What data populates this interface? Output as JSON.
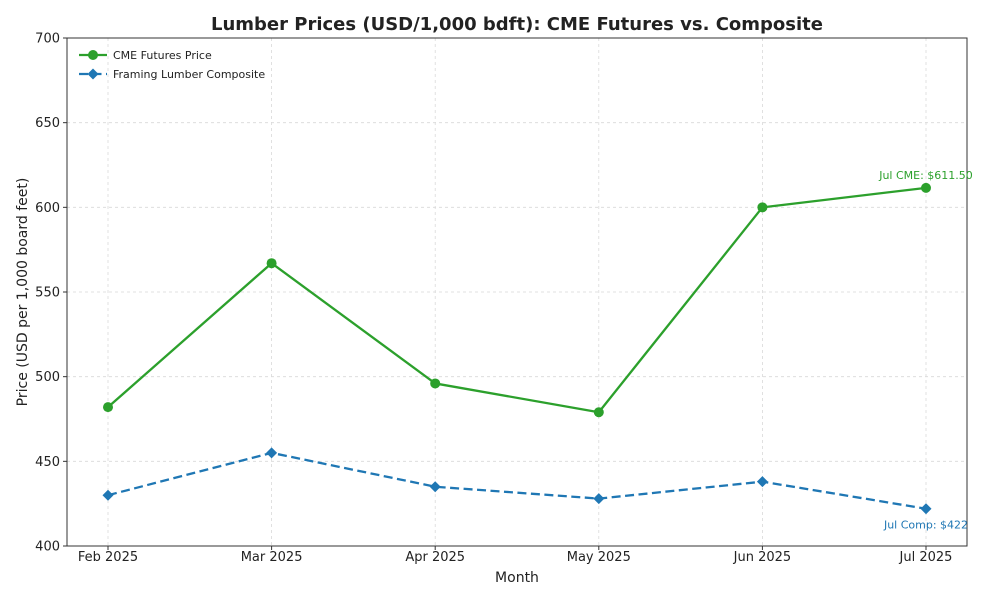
{
  "chart_data": {
    "type": "line",
    "title": "Lumber Prices (USD/1,000 bdft): CME Futures vs. Composite",
    "xlabel": "Month",
    "ylabel": "Price (USD per 1,000 board feet)",
    "categories": [
      "Feb 2025",
      "Mar 2025",
      "Apr 2025",
      "May 2025",
      "Jun 2025",
      "Jul 2025"
    ],
    "ylim": [
      400,
      700
    ],
    "yticks": [
      400,
      450,
      500,
      550,
      600,
      650,
      700
    ],
    "grid": true,
    "legend_position": "top-left",
    "series": [
      {
        "name": "CME Futures Price",
        "values": [
          482,
          567,
          496,
          479,
          600,
          611.5
        ],
        "color": "#2ca02c",
        "marker": "circle",
        "line_style": "solid"
      },
      {
        "name": "Framing Lumber Composite",
        "values": [
          430,
          455,
          435,
          428,
          438,
          422
        ],
        "color": "#1f77b4",
        "marker": "diamond",
        "line_style": "dashed"
      }
    ],
    "annotations": [
      {
        "text": "Jul CME: $611.50",
        "series": 0,
        "index": 5,
        "color": "#2ca02c",
        "position": "above"
      },
      {
        "text": "Jul Comp: $422",
        "series": 1,
        "index": 5,
        "color": "#1f77b4",
        "position": "below"
      }
    ]
  }
}
